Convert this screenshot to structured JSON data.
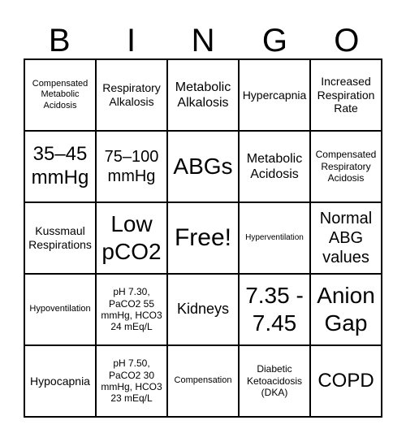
{
  "header": [
    "B",
    "I",
    "N",
    "G",
    "O"
  ],
  "cells": [
    "Compensated Metabolic Acidosis",
    "Respiratory Alkalosis",
    "Metabolic Alkalosis",
    "Hypercapnia",
    "Increased Respiration Rate",
    "35–45 mmHg",
    "75–100 mmHg",
    "ABGs",
    "Metabolic Acidosis",
    "Compensated Respiratory Acidosis",
    "Kussmaul Respirations",
    "Low pCO2",
    "Free!",
    "Hyperventilation",
    "Normal ABG values",
    "Hypoventilation",
    "pH 7.30, PaCO2 55 mmHg, HCO3 24 mEq/L",
    "Kidneys",
    "7.35 - 7.45",
    "Anion Gap",
    "Hypocapnia",
    "pH 7.50, PaCO2 30 mmHg, HCO3 23 mEq/L",
    "Compensation",
    "Diabetic Ketoacidosis (DKA)",
    "COPD"
  ]
}
